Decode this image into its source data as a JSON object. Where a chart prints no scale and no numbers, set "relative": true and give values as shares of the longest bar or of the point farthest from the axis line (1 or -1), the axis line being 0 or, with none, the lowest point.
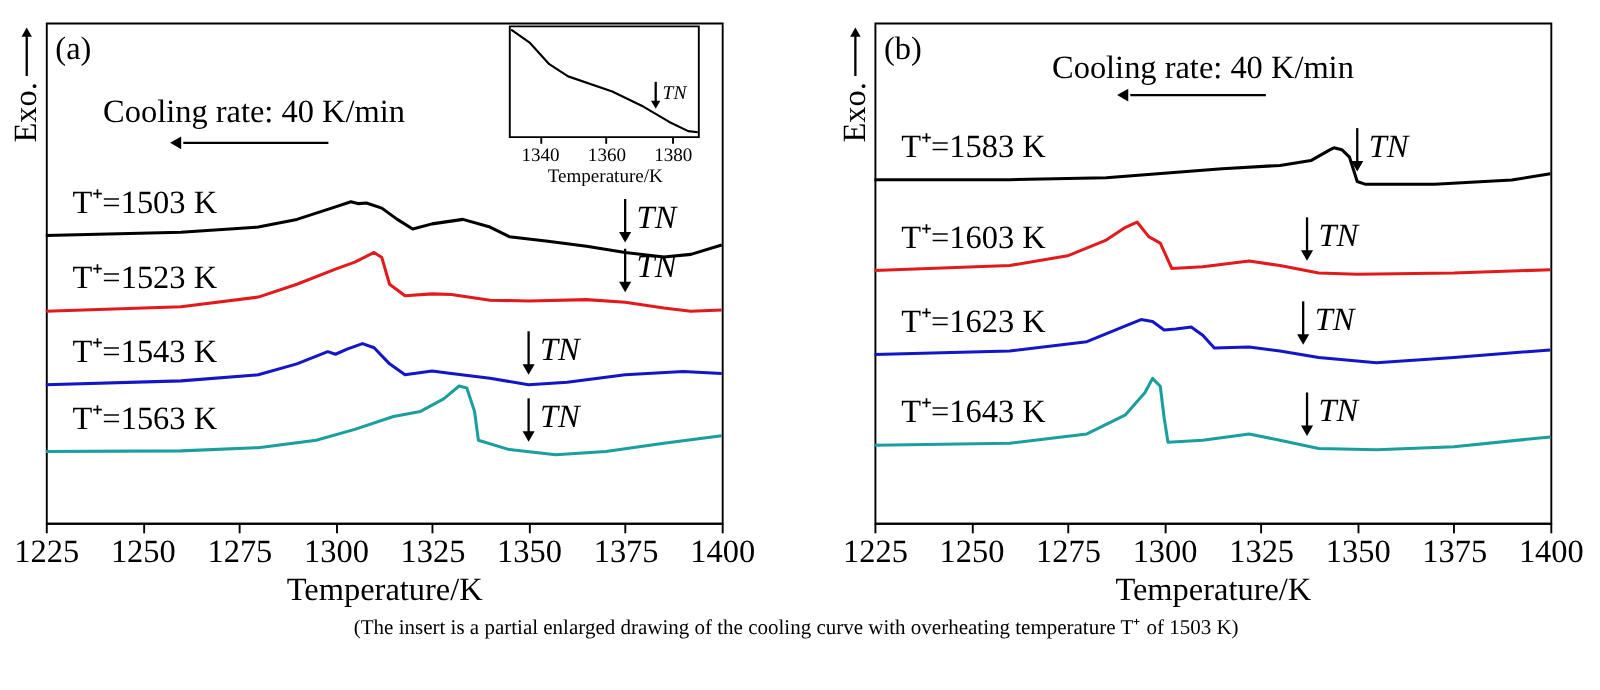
{
  "chart_data": [
    {
      "type": "line",
      "relative": true,
      "xlabel": "Temperature/K",
      "ylabel": "Exo.",
      "xlim": [
        1225,
        1400
      ],
      "xticks": [
        1225,
        1250,
        1275,
        1300,
        1325,
        1350,
        1375,
        1400
      ],
      "annotations": [
        "(a)",
        "Cooling rate: 40 K/min",
        "(The insert is a partial enlarged drawing of the cooling curve with overheating temperature T⁺ of 1503 K)",
        {
          "text": "TN",
          "x": 1375,
          "y": 0.842
        },
        {
          "text": "TN",
          "x": 1375,
          "y": 0.687
        },
        {
          "text": "TN",
          "x": 1350,
          "y": 0.43
        },
        {
          "text": "TN",
          "x": 1350,
          "y": 0.221
        }
      ],
      "series": [
        {
          "name": "T⁺=1503 K",
          "color": "#000000",
          "x": [
            1225,
            1260,
            1280,
            1290,
            1300,
            1304,
            1306,
            1308,
            1312,
            1316,
            1320,
            1325,
            1333,
            1340,
            1345,
            1355,
            1365,
            1375,
            1385,
            1392,
            1400
          ],
          "values": [
            0.895,
            0.905,
            0.921,
            0.945,
            0.984,
            1.0,
            0.994,
            0.996,
            0.98,
            0.945,
            0.915,
            0.931,
            0.945,
            0.921,
            0.891,
            0.877,
            0.861,
            0.842,
            0.828,
            0.836,
            0.865
          ]
        },
        {
          "name": "T⁺=1523 K",
          "color": "#e31a1c",
          "x": [
            1225,
            1260,
            1280,
            1290,
            1300,
            1305,
            1310,
            1312,
            1314,
            1318,
            1325,
            1330,
            1340,
            1350,
            1365,
            1375,
            1385,
            1392,
            1400
          ],
          "values": [
            0.659,
            0.673,
            0.703,
            0.743,
            0.79,
            0.812,
            0.842,
            0.826,
            0.743,
            0.707,
            0.713,
            0.711,
            0.693,
            0.691,
            0.695,
            0.687,
            0.669,
            0.659,
            0.663
          ]
        },
        {
          "name": "T⁺=1543 K",
          "color": "#1515c8",
          "x": [
            1225,
            1260,
            1280,
            1290,
            1298,
            1300,
            1303,
            1307,
            1310,
            1314,
            1318,
            1325,
            1330,
            1340,
            1350,
            1360,
            1375,
            1390,
            1400
          ],
          "values": [
            0.43,
            0.442,
            0.461,
            0.495,
            0.533,
            0.525,
            0.541,
            0.558,
            0.545,
            0.495,
            0.461,
            0.473,
            0.465,
            0.45,
            0.43,
            0.438,
            0.461,
            0.471,
            0.465
          ]
        },
        {
          "name": "T⁺=1563 K",
          "color": "#1a9e9e",
          "x": [
            1225,
            1260,
            1280,
            1295,
            1305,
            1315,
            1322,
            1328,
            1332,
            1334,
            1336,
            1337,
            1345,
            1357,
            1370,
            1385,
            1400
          ],
          "values": [
            0.222,
            0.224,
            0.234,
            0.257,
            0.291,
            0.331,
            0.347,
            0.386,
            0.426,
            0.42,
            0.347,
            0.257,
            0.228,
            0.212,
            0.222,
            0.248,
            0.271
          ]
        }
      ]
    },
    {
      "type": "line",
      "relative": true,
      "xlabel": "Temperature/K",
      "xlim": [
        1331,
        1388
      ],
      "xticks": [
        1340,
        1360,
        1380
      ],
      "annotations": [
        {
          "text": "TN",
          "x": 1375,
          "y": 0.216
        }
      ],
      "series": [
        {
          "color": "#000000",
          "x": [
            1331.4,
            1337.1,
            1342.9,
            1348.6,
            1361.9,
            1371.4,
            1379.1,
            1384.8,
            1387.7
          ],
          "values": [
            1.0,
            0.876,
            0.678,
            0.565,
            0.424,
            0.282,
            0.141,
            0.056,
            0.045
          ]
        }
      ]
    },
    {
      "type": "line",
      "relative": true,
      "xlabel": "Temperature/K",
      "ylabel": "Exo.",
      "xlim": [
        1225,
        1400
      ],
      "xticks": [
        1225,
        1250,
        1275,
        1300,
        1325,
        1350,
        1375,
        1400
      ],
      "annotations": [
        "(b)",
        "Cooling rate: 40 K/min",
        {
          "text": "TN",
          "x": 1350,
          "y": 0.91
        },
        {
          "text": "TN",
          "x": 1337,
          "y": 0.672
        },
        {
          "text": "TN",
          "x": 1336,
          "y": 0.448
        },
        {
          "text": "TN",
          "x": 1337,
          "y": 0.205
        }
      ],
      "series": [
        {
          "name": "T⁺=1583 K",
          "color": "#000000",
          "x": [
            1225,
            1260,
            1285,
            1300,
            1315,
            1330,
            1338,
            1343,
            1344,
            1346,
            1348,
            1350,
            1352,
            1370,
            1390,
            1400
          ],
          "values": [
            0.915,
            0.915,
            0.92,
            0.932,
            0.944,
            0.953,
            0.966,
            0.995,
            1.0,
            0.995,
            0.975,
            0.91,
            0.903,
            0.903,
            0.914,
            0.931
          ]
        },
        {
          "name": "T⁺=1603 K",
          "color": "#e31a1c",
          "x": [
            1225,
            1260,
            1275,
            1285,
            1290,
            1293,
            1296,
            1299,
            1302,
            1310,
            1322,
            1330,
            1340,
            1350,
            1375,
            1400
          ],
          "values": [
            0.673,
            0.686,
            0.712,
            0.754,
            0.788,
            0.802,
            0.763,
            0.746,
            0.678,
            0.683,
            0.698,
            0.686,
            0.666,
            0.663,
            0.666,
            0.675
          ]
        },
        {
          "name": "T⁺=1623 K",
          "color": "#1515c8",
          "x": [
            1225,
            1260,
            1280,
            1290,
            1294,
            1297,
            1300,
            1303,
            1307,
            1310,
            1313,
            1322,
            1330,
            1340,
            1355,
            1375,
            1400
          ],
          "values": [
            0.449,
            0.458,
            0.483,
            0.525,
            0.542,
            0.537,
            0.514,
            0.517,
            0.522,
            0.5,
            0.466,
            0.469,
            0.458,
            0.441,
            0.427,
            0.441,
            0.461
          ]
        },
        {
          "name": "T⁺=1643 K",
          "color": "#1a9e9e",
          "x": [
            1225,
            1260,
            1280,
            1290,
            1295,
            1297,
            1299,
            1300,
            1301,
            1310,
            1322,
            1330,
            1340,
            1355,
            1375,
            1400
          ],
          "values": [
            0.207,
            0.212,
            0.237,
            0.288,
            0.347,
            0.385,
            0.364,
            0.28,
            0.215,
            0.22,
            0.237,
            0.22,
            0.198,
            0.195,
            0.203,
            0.229
          ]
        }
      ]
    }
  ]
}
